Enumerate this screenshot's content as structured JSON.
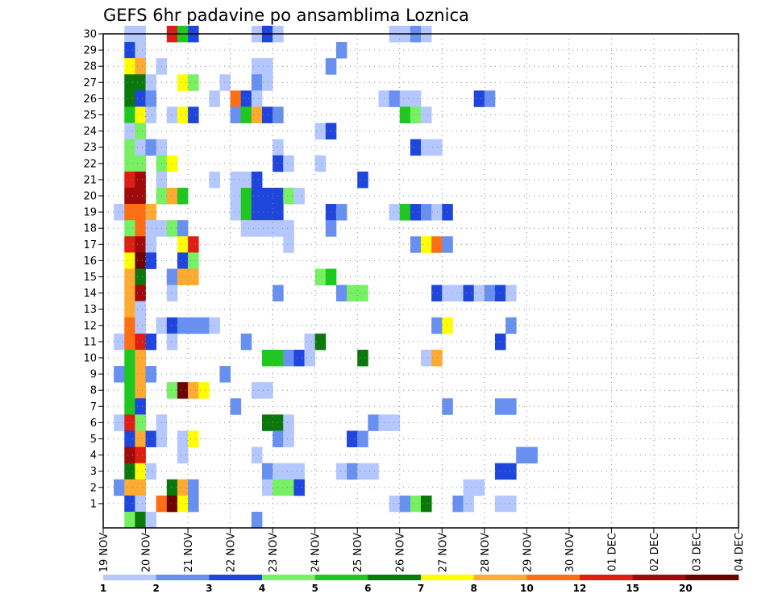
{
  "chart_data": {
    "type": "heatmap",
    "title": "GEFS 6hr padavine po ansamblima Loznica",
    "x_tick_labels": [
      "19 NOV",
      "20 NOV",
      "21 NOV",
      "22 NOV",
      "23 NOV",
      "24 NOV",
      "25 NOV",
      "26 NOV",
      "27 NOV",
      "28 NOV",
      "29 NOV",
      "30 NOV",
      "01 DEC",
      "02 DEC",
      "03 DEC",
      "04 DEC"
    ],
    "y_tick_labels": [
      "1",
      "2",
      "3",
      "4",
      "5",
      "6",
      "7",
      "8",
      "9",
      "10",
      "11",
      "12",
      "13",
      "14",
      "15",
      "16",
      "17",
      "18",
      "19",
      "20",
      "21",
      "22",
      "23",
      "24",
      "25",
      "26",
      "27",
      "28",
      "29",
      "30"
    ],
    "grid": true,
    "legend": {
      "placement": "bottom",
      "boundary_labels": [
        "1",
        "2",
        "3",
        "4",
        "5",
        "6",
        "7",
        "8",
        "10",
        "12",
        "15",
        "20"
      ],
      "colors": [
        "#b4c8ff",
        "#6890f0",
        "#1e46dc",
        "#78f064",
        "#1ec81e",
        "#0a780a",
        "#ffff00",
        "#ffaa32",
        "#ff6e14",
        "#dc1e14",
        "#a00a0a",
        "#6e0000"
      ]
    },
    "cells": [
      [
        30,
        2,
        0
      ],
      [
        30,
        3,
        0
      ],
      [
        30,
        6,
        9
      ],
      [
        30,
        7,
        4
      ],
      [
        30,
        8,
        2
      ],
      [
        30,
        14,
        0
      ],
      [
        30,
        15,
        2
      ],
      [
        30,
        16,
        0
      ],
      [
        30,
        27,
        0
      ],
      [
        30,
        28,
        0
      ],
      [
        30,
        29,
        1
      ],
      [
        30,
        30,
        0
      ],
      [
        29,
        2,
        2
      ],
      [
        29,
        3,
        0
      ],
      [
        29,
        22,
        1
      ],
      [
        28,
        2,
        6
      ],
      [
        28,
        3,
        7
      ],
      [
        28,
        5,
        0
      ],
      [
        28,
        14,
        0
      ],
      [
        28,
        15,
        0
      ],
      [
        28,
        21,
        1
      ],
      [
        27,
        2,
        5
      ],
      [
        27,
        3,
        5
      ],
      [
        27,
        4,
        0
      ],
      [
        27,
        7,
        6
      ],
      [
        27,
        8,
        3
      ],
      [
        27,
        11,
        0
      ],
      [
        27,
        14,
        1
      ],
      [
        27,
        15,
        0
      ],
      [
        26,
        2,
        5
      ],
      [
        26,
        3,
        2
      ],
      [
        26,
        4,
        1
      ],
      [
        26,
        10,
        0
      ],
      [
        26,
        12,
        8
      ],
      [
        26,
        13,
        2
      ],
      [
        26,
        14,
        0
      ],
      [
        26,
        26,
        0
      ],
      [
        26,
        27,
        1
      ],
      [
        26,
        28,
        0
      ],
      [
        26,
        29,
        0
      ],
      [
        26,
        35,
        2
      ],
      [
        26,
        36,
        1
      ],
      [
        25,
        2,
        4
      ],
      [
        25,
        3,
        6
      ],
      [
        25,
        4,
        0
      ],
      [
        25,
        6,
        0
      ],
      [
        25,
        7,
        6
      ],
      [
        25,
        8,
        2
      ],
      [
        25,
        12,
        1
      ],
      [
        25,
        13,
        4
      ],
      [
        25,
        14,
        7
      ],
      [
        25,
        15,
        2
      ],
      [
        25,
        16,
        1
      ],
      [
        25,
        28,
        4
      ],
      [
        25,
        29,
        3
      ],
      [
        25,
        30,
        0
      ],
      [
        24,
        2,
        0
      ],
      [
        24,
        3,
        3
      ],
      [
        24,
        20,
        0
      ],
      [
        24,
        21,
        2
      ],
      [
        23,
        2,
        3
      ],
      [
        23,
        3,
        0
      ],
      [
        23,
        4,
        1
      ],
      [
        23,
        5,
        0
      ],
      [
        23,
        16,
        0
      ],
      [
        23,
        29,
        2
      ],
      [
        23,
        30,
        0
      ],
      [
        23,
        31,
        0
      ],
      [
        22,
        2,
        3
      ],
      [
        22,
        3,
        3
      ],
      [
        22,
        5,
        3
      ],
      [
        22,
        6,
        6
      ],
      [
        22,
        16,
        2
      ],
      [
        22,
        17,
        0
      ],
      [
        22,
        20,
        0
      ],
      [
        21,
        2,
        9
      ],
      [
        21,
        3,
        10
      ],
      [
        21,
        5,
        0
      ],
      [
        21,
        10,
        0
      ],
      [
        21,
        12,
        0
      ],
      [
        21,
        13,
        0
      ],
      [
        21,
        14,
        2
      ],
      [
        21,
        24,
        2
      ],
      [
        20,
        2,
        10
      ],
      [
        20,
        3,
        10
      ],
      [
        20,
        5,
        3
      ],
      [
        20,
        6,
        7
      ],
      [
        20,
        7,
        4
      ],
      [
        20,
        12,
        0
      ],
      [
        20,
        13,
        4
      ],
      [
        20,
        14,
        2
      ],
      [
        20,
        15,
        2
      ],
      [
        20,
        16,
        2
      ],
      [
        20,
        17,
        3
      ],
      [
        20,
        18,
        0
      ],
      [
        19,
        1,
        0
      ],
      [
        19,
        2,
        8
      ],
      [
        19,
        3,
        8
      ],
      [
        19,
        4,
        7
      ],
      [
        19,
        12,
        0
      ],
      [
        19,
        13,
        4
      ],
      [
        19,
        14,
        2
      ],
      [
        19,
        15,
        2
      ],
      [
        19,
        16,
        2
      ],
      [
        19,
        21,
        2
      ],
      [
        19,
        22,
        1
      ],
      [
        19,
        27,
        0
      ],
      [
        19,
        28,
        4
      ],
      [
        19,
        29,
        2
      ],
      [
        19,
        30,
        1
      ],
      [
        19,
        31,
        0
      ],
      [
        19,
        32,
        2
      ],
      [
        18,
        2,
        3
      ],
      [
        18,
        3,
        8
      ],
      [
        18,
        4,
        0
      ],
      [
        18,
        5,
        0
      ],
      [
        18,
        6,
        3
      ],
      [
        18,
        7,
        1
      ],
      [
        18,
        13,
        0
      ],
      [
        18,
        14,
        0
      ],
      [
        18,
        15,
        0
      ],
      [
        18,
        16,
        0
      ],
      [
        18,
        17,
        0
      ],
      [
        18,
        21,
        1
      ],
      [
        17,
        2,
        9
      ],
      [
        17,
        3,
        10
      ],
      [
        17,
        4,
        0
      ],
      [
        17,
        7,
        6
      ],
      [
        17,
        8,
        9
      ],
      [
        17,
        17,
        0
      ],
      [
        17,
        29,
        1
      ],
      [
        17,
        30,
        6
      ],
      [
        17,
        31,
        8
      ],
      [
        17,
        32,
        1
      ],
      [
        16,
        2,
        6
      ],
      [
        16,
        3,
        11
      ],
      [
        16,
        4,
        2
      ],
      [
        16,
        7,
        2
      ],
      [
        16,
        8,
        3
      ],
      [
        15,
        2,
        7
      ],
      [
        15,
        3,
        5
      ],
      [
        15,
        6,
        1
      ],
      [
        15,
        7,
        7
      ],
      [
        15,
        8,
        7
      ],
      [
        15,
        20,
        3
      ],
      [
        15,
        21,
        4
      ],
      [
        14,
        2,
        7
      ],
      [
        14,
        3,
        10
      ],
      [
        14,
        6,
        0
      ],
      [
        14,
        16,
        1
      ],
      [
        14,
        22,
        1
      ],
      [
        14,
        23,
        3
      ],
      [
        14,
        24,
        3
      ],
      [
        14,
        31,
        2
      ],
      [
        14,
        32,
        0
      ],
      [
        14,
        33,
        0
      ],
      [
        14,
        34,
        2
      ],
      [
        14,
        35,
        0
      ],
      [
        14,
        36,
        1
      ],
      [
        14,
        37,
        2
      ],
      [
        14,
        38,
        0
      ],
      [
        13,
        2,
        7
      ],
      [
        13,
        3,
        0
      ],
      [
        12,
        2,
        8
      ],
      [
        12,
        3,
        0
      ],
      [
        12,
        5,
        0
      ],
      [
        12,
        6,
        2
      ],
      [
        12,
        7,
        1
      ],
      [
        12,
        8,
        1
      ],
      [
        12,
        9,
        1
      ],
      [
        12,
        10,
        0
      ],
      [
        12,
        31,
        1
      ],
      [
        12,
        32,
        6
      ],
      [
        12,
        38,
        1
      ],
      [
        11,
        1,
        0
      ],
      [
        11,
        2,
        8
      ],
      [
        11,
        3,
        9
      ],
      [
        11,
        4,
        2
      ],
      [
        11,
        6,
        0
      ],
      [
        11,
        13,
        1
      ],
      [
        11,
        19,
        0
      ],
      [
        11,
        20,
        5
      ],
      [
        11,
        37,
        2
      ],
      [
        10,
        2,
        4
      ],
      [
        10,
        3,
        7
      ],
      [
        10,
        15,
        4
      ],
      [
        10,
        16,
        4
      ],
      [
        10,
        17,
        1
      ],
      [
        10,
        18,
        2
      ],
      [
        10,
        19,
        0
      ],
      [
        10,
        24,
        5
      ],
      [
        10,
        30,
        0
      ],
      [
        10,
        31,
        7
      ],
      [
        9,
        1,
        1
      ],
      [
        9,
        2,
        4
      ],
      [
        9,
        3,
        7
      ],
      [
        9,
        4,
        1
      ],
      [
        9,
        11,
        1
      ],
      [
        8,
        2,
        4
      ],
      [
        8,
        3,
        7
      ],
      [
        8,
        6,
        3
      ],
      [
        8,
        7,
        11
      ],
      [
        8,
        8,
        7
      ],
      [
        8,
        9,
        6
      ],
      [
        8,
        14,
        0
      ],
      [
        8,
        15,
        0
      ],
      [
        7,
        2,
        4
      ],
      [
        7,
        3,
        2
      ],
      [
        7,
        12,
        1
      ],
      [
        7,
        32,
        1
      ],
      [
        7,
        37,
        1
      ],
      [
        7,
        38,
        1
      ],
      [
        6,
        1,
        0
      ],
      [
        6,
        2,
        9
      ],
      [
        6,
        3,
        3
      ],
      [
        6,
        5,
        0
      ],
      [
        6,
        15,
        5
      ],
      [
        6,
        16,
        5
      ],
      [
        6,
        17,
        0
      ],
      [
        6,
        25,
        1
      ],
      [
        6,
        26,
        0
      ],
      [
        6,
        27,
        0
      ],
      [
        5,
        2,
        2
      ],
      [
        5,
        3,
        7
      ],
      [
        5,
        4,
        2
      ],
      [
        5,
        5,
        0
      ],
      [
        5,
        7,
        0
      ],
      [
        5,
        8,
        6
      ],
      [
        5,
        16,
        1
      ],
      [
        5,
        17,
        0
      ],
      [
        5,
        23,
        2
      ],
      [
        5,
        24,
        1
      ],
      [
        4,
        2,
        10
      ],
      [
        4,
        3,
        9
      ],
      [
        4,
        7,
        0
      ],
      [
        4,
        14,
        0
      ],
      [
        4,
        39,
        1
      ],
      [
        4,
        40,
        1
      ],
      [
        3,
        2,
        5
      ],
      [
        3,
        3,
        6
      ],
      [
        3,
        4,
        0
      ],
      [
        3,
        15,
        1
      ],
      [
        3,
        16,
        0
      ],
      [
        3,
        17,
        0
      ],
      [
        3,
        18,
        0
      ],
      [
        3,
        22,
        0
      ],
      [
        3,
        23,
        1
      ],
      [
        3,
        24,
        0
      ],
      [
        3,
        25,
        0
      ],
      [
        3,
        37,
        2
      ],
      [
        3,
        38,
        2
      ],
      [
        2,
        1,
        1
      ],
      [
        2,
        2,
        7
      ],
      [
        2,
        3,
        7
      ],
      [
        2,
        6,
        5
      ],
      [
        2,
        7,
        7
      ],
      [
        2,
        8,
        1
      ],
      [
        2,
        15,
        0
      ],
      [
        2,
        16,
        3
      ],
      [
        2,
        17,
        3
      ],
      [
        2,
        18,
        2
      ],
      [
        2,
        34,
        0
      ],
      [
        2,
        35,
        0
      ],
      [
        1,
        2,
        2
      ],
      [
        1,
        3,
        0
      ],
      [
        1,
        5,
        8
      ],
      [
        1,
        6,
        11
      ],
      [
        1,
        7,
        6
      ],
      [
        1,
        8,
        1
      ],
      [
        1,
        27,
        0
      ],
      [
        1,
        28,
        1
      ],
      [
        1,
        29,
        3
      ],
      [
        1,
        30,
        5
      ],
      [
        1,
        33,
        1
      ],
      [
        1,
        34,
        0
      ],
      [
        1,
        37,
        0
      ],
      [
        1,
        38,
        0
      ],
      [
        0,
        2,
        3
      ],
      [
        0,
        3,
        5
      ],
      [
        0,
        4,
        0
      ],
      [
        0,
        14,
        1
      ]
    ]
  }
}
